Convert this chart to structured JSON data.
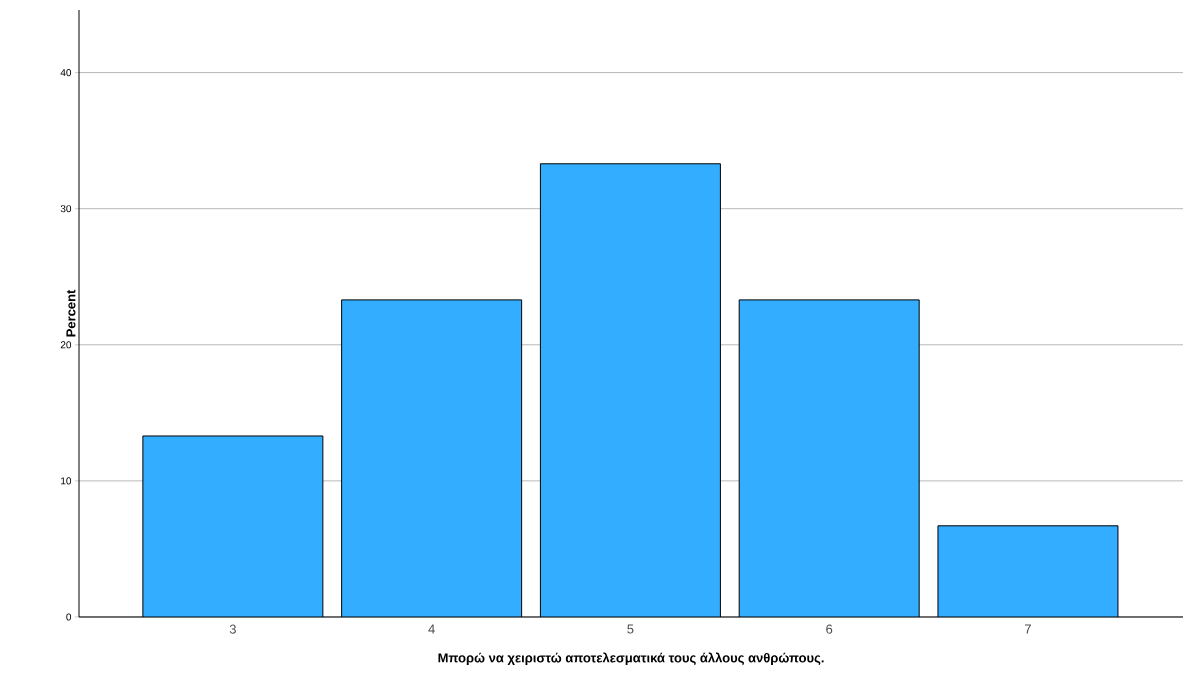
{
  "chart_data": {
    "type": "bar",
    "xlabel": "Μπορώ να χειριστώ αποτελεσματικά τους άλλους ανθρώπους.",
    "ylabel": "Percent",
    "categories": [
      "3",
      "4",
      "5",
      "6",
      "7"
    ],
    "values": [
      13.3,
      23.3,
      33.3,
      23.3,
      6.7
    ],
    "color": "#33adff",
    "ylim": [
      0,
      44.6
    ],
    "yticks": [
      0,
      10,
      20,
      30,
      40
    ],
    "grid": "y"
  }
}
